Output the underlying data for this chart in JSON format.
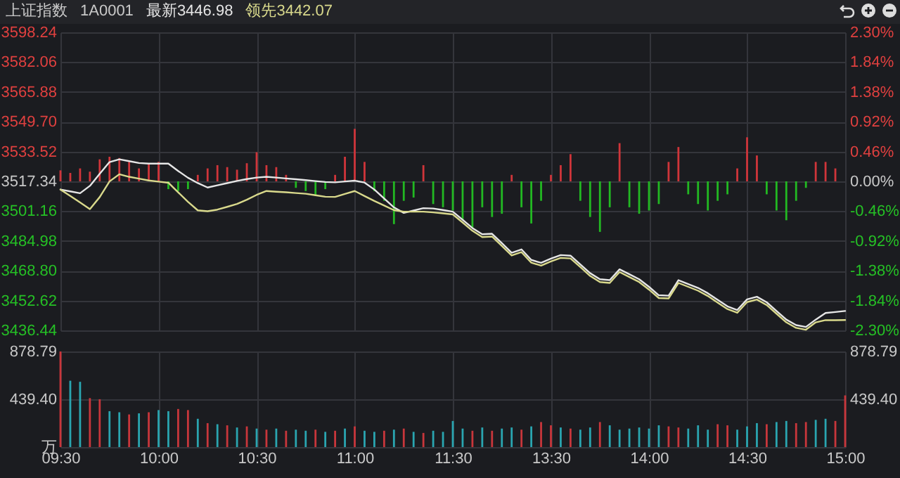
{
  "chart_data": [
    {
      "type": "line",
      "title": "上证指数",
      "subtitle": "1A0001",
      "grid": true,
      "tick_labels": "y",
      "categories": [
        null,
        null,
        null,
        null,
        null,
        null,
        null,
        null,
        null,
        null,
        null,
        null,
        null,
        null,
        null,
        null,
        null,
        null,
        null,
        null,
        null,
        null,
        null,
        null,
        null,
        null,
        null,
        null,
        null,
        null,
        null,
        null,
        null,
        null,
        null,
        null,
        null,
        null,
        null,
        null,
        null,
        null,
        null,
        null,
        null,
        null,
        null,
        null,
        null,
        null,
        null,
        null,
        null,
        null,
        null,
        null,
        null,
        null,
        null,
        null,
        null,
        null,
        null,
        null,
        null,
        null,
        null,
        null,
        null,
        null,
        null,
        null,
        null,
        null,
        null,
        null,
        null,
        null,
        null,
        null,
        null
      ],
      "ylim": [
        3436.44,
        3598.24
      ],
      "yticks": [
        3598.24,
        3582.06,
        3565.88,
        {
          "value": 3549.7,
          "label": "3549.70"
        },
        3533.52,
        3517.34,
        3501.16,
        3484.98,
        {
          "value": 3468.8,
          "label": "3468.80"
        },
        3452.62,
        3436.44
      ],
      "y2lim": [
        -2.3,
        2.3
      ],
      "y2ticks": [
        {
          "value": 2.3,
          "label": "2.30%"
        },
        {
          "value": 1.84,
          "label": "1.84%"
        },
        {
          "value": 1.38,
          "label": "1.38%"
        },
        {
          "value": 0.92,
          "label": "0.92%"
        },
        {
          "value": 0.46,
          "label": "0.46%"
        },
        {
          "value": 0,
          "label": "0.00%"
        },
        {
          "value": -0.46,
          "label": "-0.46%"
        },
        {
          "value": -0.92,
          "label": "-0.92%"
        },
        {
          "value": -1.38,
          "label": "-1.38%"
        },
        {
          "value": -1.84,
          "label": "-1.84%"
        },
        {
          "value": -2.3,
          "label": "-2.30%"
        }
      ],
      "series": [
        {
          "type": "bar",
          "axis": "y2",
          "color": "#d0353a",
          "values": [
            0.17,
            0.13,
            0.2,
            0.15,
            0.34,
            0.38,
            0.36,
            0.3,
            0.2,
            0.28,
            0.3,
            null,
            null,
            null,
            0.1,
            0.2,
            0.25,
            0.22,
            0.18,
            0.28,
            0.45,
            0.25,
            0.22,
            0.1,
            null,
            null,
            null,
            null,
            0.1,
            0.38,
            0.81,
            0.3,
            null,
            null,
            null,
            null,
            null,
            0.25,
            null,
            null,
            null,
            null,
            null,
            null,
            null,
            null,
            0.1,
            null,
            null,
            null,
            0.1,
            0.25,
            0.42,
            null,
            null,
            null,
            null,
            0.59,
            null,
            null,
            null,
            null,
            0.3,
            0.53,
            null,
            null,
            null,
            null,
            null,
            0.2,
            0.68,
            0.4,
            null,
            null,
            null,
            null,
            null,
            0.3,
            0.3,
            0.2,
            null
          ]
        },
        {
          "type": "bar",
          "axis": "y2",
          "color": "#22b822",
          "values": [
            null,
            null,
            null,
            null,
            null,
            null,
            null,
            null,
            null,
            null,
            null,
            -0.12,
            -0.15,
            -0.12,
            null,
            null,
            null,
            null,
            null,
            null,
            null,
            null,
            null,
            null,
            -0.1,
            -0.15,
            -0.22,
            -0.12,
            null,
            null,
            null,
            null,
            -0.15,
            -0.3,
            -0.66,
            -0.3,
            -0.25,
            null,
            -0.35,
            -0.4,
            -0.45,
            -0.6,
            -0.72,
            -0.4,
            -0.55,
            -0.5,
            null,
            -0.4,
            -0.65,
            -0.3,
            null,
            null,
            null,
            -0.3,
            -0.55,
            -0.78,
            -0.4,
            null,
            -0.4,
            -0.5,
            -0.45,
            -0.35,
            null,
            null,
            -0.2,
            -0.35,
            -0.45,
            -0.3,
            -0.2,
            null,
            null,
            null,
            -0.2,
            -0.45,
            -0.6,
            -0.3,
            -0.1,
            null,
            null,
            null,
            null
          ]
        },
        {
          "name": "最新3446.98",
          "color": "#e6e6e6",
          "values": [
            3512.9,
            3511.9,
            3510.9,
            3514.9,
            3521.4,
            3527.8,
            3529.3,
            3528.3,
            3527.3,
            3527,
            3527,
            3527,
            3523,
            3519.3,
            3516.4,
            3514,
            3515.2,
            3516.4,
            3517.6,
            3518.6,
            3519.4,
            3519.8,
            3519.4,
            3518.9,
            3518.5,
            3518,
            3517.5,
            3517,
            3516.8,
            3517.3,
            3517.7,
            3516.7,
            3512.9,
            3508,
            3503.2,
            3500.2,
            3501.5,
            3502.8,
            3502.6,
            3501.8,
            3500.9,
            3496.5,
            3492,
            3488.6,
            3488.9,
            3483.8,
            3478.6,
            3480.4,
            3474.7,
            3473.1,
            3475.4,
            3477.3,
            3477,
            3472.3,
            3467.5,
            3464.2,
            3463.7,
            3469.6,
            3466.9,
            3464.2,
            3460.1,
            3455.5,
            3455.3,
            3463.7,
            3461.6,
            3459.5,
            3456.6,
            3453,
            3449.5,
            3447.5,
            3453.3,
            3454.7,
            3451.7,
            3447,
            3442.3,
            3439.3,
            3438.3,
            3442.3,
            3445.9,
            3446.4,
            3446.98
          ]
        },
        {
          "name": "领先3442.07",
          "color": "#d9d98c",
          "values": [
            3512.9,
            3509.4,
            3505.9,
            3502.3,
            3508.8,
            3517.3,
            3521.2,
            3519.8,
            3518.8,
            3517.8,
            3517.2,
            3516.6,
            3511.4,
            3506.2,
            3501.6,
            3501.1,
            3502,
            3503.5,
            3505.1,
            3507.4,
            3510,
            3512.1,
            3511.7,
            3511.4,
            3511,
            3510.6,
            3509.8,
            3509,
            3508.9,
            3510.5,
            3512.1,
            3509.4,
            3506.7,
            3504.2,
            3501.7,
            3500.9,
            3500.9,
            3500.9,
            3500.5,
            3500,
            3499.4,
            3495,
            3490.5,
            3487.1,
            3487.4,
            3482.3,
            3477.1,
            3478.9,
            3473.2,
            3471.6,
            3473.9,
            3475.8,
            3475.5,
            3470.8,
            3466,
            3462.7,
            3462.2,
            3468.1,
            3465.4,
            3462.7,
            3458.6,
            3454,
            3453.8,
            3462.2,
            3460.1,
            3458,
            3455.1,
            3451.5,
            3448,
            3446,
            3451.8,
            3453.2,
            3450.2,
            3445.5,
            3440.8,
            3437.8,
            3436.8,
            3440.8,
            3442,
            3442,
            3442.07
          ]
        }
      ]
    },
    {
      "type": "bar",
      "grid": true,
      "categories": [
        "09:30",
        null,
        null,
        null,
        null,
        null,
        null,
        null,
        null,
        null,
        "10:00",
        null,
        null,
        null,
        null,
        null,
        null,
        null,
        null,
        null,
        "10:30",
        null,
        null,
        null,
        null,
        null,
        null,
        null,
        null,
        null,
        "11:00",
        null,
        null,
        null,
        null,
        null,
        null,
        null,
        null,
        null,
        "11:30",
        null,
        null,
        null,
        null,
        null,
        null,
        null,
        null,
        null,
        "13:30",
        null,
        null,
        null,
        null,
        null,
        null,
        null,
        null,
        null,
        "14:00",
        null,
        null,
        null,
        null,
        null,
        null,
        null,
        null,
        null,
        "14:30",
        null,
        null,
        null,
        null,
        null,
        null,
        null,
        null,
        null,
        "15:00"
      ],
      "ylim": [
        0,
        878.79
      ],
      "yticks": [
        {
          "value": 0,
          "label": "万"
        },
        {
          "value": 439.4,
          "label": "439.40"
        },
        878.79
      ],
      "y2lim": [
        0,
        878.79
      ],
      "y2ticks": [
        {
          "value": 439.4,
          "label": "439.40"
        },
        878.79
      ],
      "series": [
        {
          "color": "#c8363b",
          "values": [
            878.79,
            null,
            null,
            450,
            440,
            null,
            null,
            300,
            null,
            320,
            null,
            null,
            350,
            340,
            null,
            220,
            null,
            200,
            null,
            190,
            null,
            160,
            null,
            150,
            null,
            null,
            160,
            null,
            150,
            null,
            190,
            null,
            null,
            150,
            null,
            170,
            null,
            130,
            null,
            null,
            null,
            null,
            150,
            null,
            150,
            null,
            null,
            160,
            null,
            230,
            200,
            null,
            170,
            null,
            null,
            230,
            null,
            null,
            null,
            null,
            null,
            null,
            190,
            180,
            null,
            null,
            null,
            210,
            200,
            null,
            null,
            null,
            210,
            null,
            null,
            220,
            230,
            null,
            null,
            240,
            475
          ]
        },
        {
          "color": "#2aa5b0",
          "axis": "y2",
          "values": [
            null,
            610,
            600,
            null,
            null,
            330,
            320,
            null,
            310,
            null,
            340,
            330,
            null,
            null,
            260,
            null,
            210,
            null,
            180,
            null,
            170,
            null,
            170,
            null,
            160,
            150,
            null,
            140,
            null,
            170,
            null,
            150,
            140,
            null,
            160,
            null,
            140,
            null,
            150,
            140,
            240,
            170,
            null,
            180,
            null,
            170,
            180,
            null,
            190,
            null,
            null,
            180,
            null,
            160,
            180,
            null,
            200,
            160,
            170,
            180,
            170,
            200,
            null,
            null,
            170,
            200,
            160,
            null,
            null,
            160,
            190,
            220,
            null,
            230,
            240,
            null,
            null,
            250,
            260,
            null,
            null
          ]
        }
      ]
    }
  ]
}
